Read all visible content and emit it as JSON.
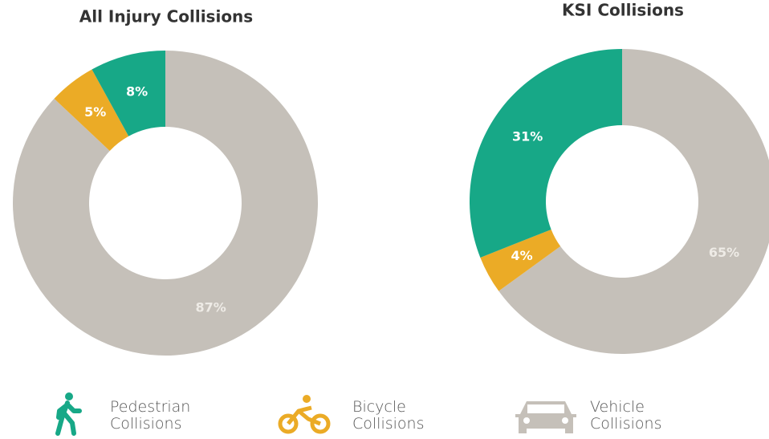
{
  "chart_data": [
    {
      "type": "pie",
      "title": "All Injury Collisions",
      "values": [
        87,
        5,
        8
      ],
      "value_labels": [
        "87%",
        "5%",
        "8%"
      ],
      "colors": [
        "#c5c0b9",
        "#ebab26",
        "#17a887"
      ]
    },
    {
      "type": "pie",
      "title": "KSI Collisions",
      "values": [
        65,
        4,
        31
      ],
      "value_labels": [
        "65%",
        "4%",
        "31%"
      ],
      "colors": [
        "#c5c0b9",
        "#ebab26",
        "#17a887"
      ]
    }
  ],
  "legend": [
    {
      "label": "Pedestrian Collisions",
      "color": "#17a887"
    },
    {
      "label": "Bicycle Collisions",
      "color": "#ebab26"
    },
    {
      "label": "Vehicle Collisions",
      "color": "#c5c0b9"
    }
  ]
}
